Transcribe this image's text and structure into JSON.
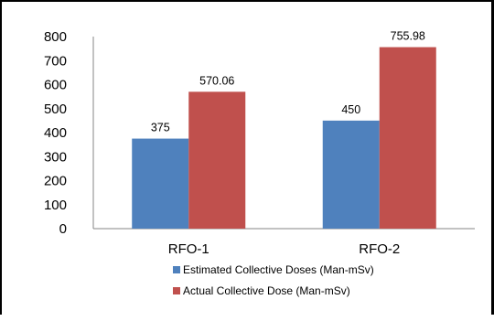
{
  "chart_data": {
    "type": "bar",
    "title": "",
    "xlabel": "",
    "ylabel": "",
    "ylim": [
      0,
      800
    ],
    "yticks": [
      0,
      100,
      200,
      300,
      400,
      500,
      600,
      700,
      800
    ],
    "categories": [
      "RFO-1",
      "RFO-2"
    ],
    "series": [
      {
        "name": "Estimated Collective Doses (Man-mSv)",
        "values": [
          375,
          450
        ],
        "labels": [
          "375",
          "450"
        ],
        "color": "#4f81bd"
      },
      {
        "name": "Actual Collective Dose (Man-mSv)",
        "values": [
          570.06,
          755.98
        ],
        "labels": [
          "570.06",
          "755.98"
        ],
        "color": "#c0504d"
      }
    ],
    "grid": false,
    "legend_position": "bottom"
  }
}
